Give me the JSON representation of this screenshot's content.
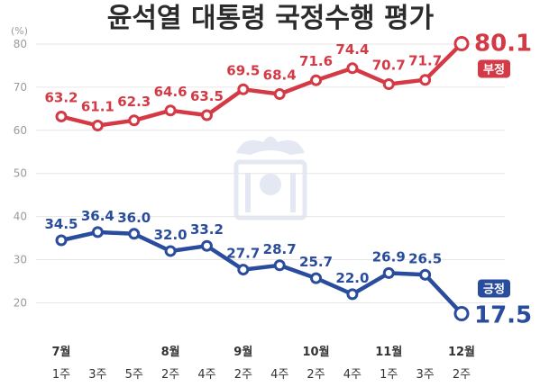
{
  "chart_data": {
    "type": "line",
    "title": "윤석열 대통령 국정수행 평가",
    "y_unit": "(%)",
    "ylim": [
      13,
      85
    ],
    "yticks": [
      20,
      30,
      40,
      50,
      60,
      70,
      80
    ],
    "grid": true,
    "month_labels": [
      {
        "label": "7월",
        "index": 0
      },
      {
        "label": "8월",
        "index": 3
      },
      {
        "label": "9월",
        "index": 5
      },
      {
        "label": "10월",
        "index": 7
      },
      {
        "label": "11월",
        "index": 9
      },
      {
        "label": "12월",
        "index": 11
      }
    ],
    "categories": [
      "1주",
      "3주",
      "5주",
      "2주",
      "4주",
      "2주",
      "4주",
      "2주",
      "4주",
      "1주",
      "3주",
      "2주"
    ],
    "series": [
      {
        "name": "부정",
        "color": "#d33a45",
        "values": [
          63.2,
          61.1,
          62.3,
          64.6,
          63.5,
          69.5,
          68.4,
          71.6,
          74.4,
          70.7,
          71.7,
          80.1
        ],
        "labels": [
          "63.2",
          "61.1",
          "62.3",
          "64.6",
          "63.5",
          "69.5",
          "68.4",
          "71.6",
          "74.4",
          "70.7",
          "71.7",
          "80.1"
        ]
      },
      {
        "name": "긍정",
        "color": "#2a4c9c",
        "values": [
          34.5,
          36.4,
          36.0,
          32.0,
          33.2,
          27.7,
          28.7,
          25.7,
          22.0,
          26.9,
          26.5,
          17.5
        ],
        "labels": [
          "34.5",
          "36.4",
          "36.0",
          "32.0",
          "33.2",
          "27.7",
          "28.7",
          "25.7",
          "22.0",
          "26.9",
          "26.5",
          "17.5"
        ]
      }
    ]
  }
}
